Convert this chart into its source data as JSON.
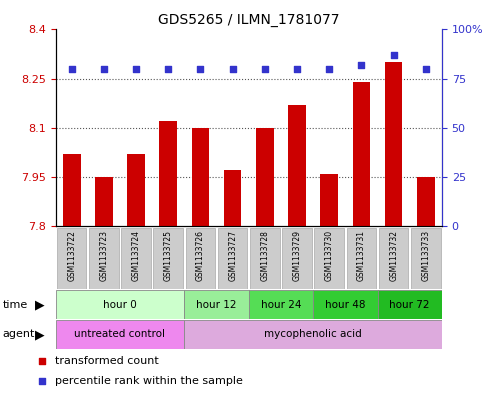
{
  "title": "GDS5265 / ILMN_1781077",
  "samples": [
    "GSM1133722",
    "GSM1133723",
    "GSM1133724",
    "GSM1133725",
    "GSM1133726",
    "GSM1133727",
    "GSM1133728",
    "GSM1133729",
    "GSM1133730",
    "GSM1133731",
    "GSM1133732",
    "GSM1133733"
  ],
  "bar_values": [
    8.02,
    7.95,
    8.02,
    8.12,
    8.1,
    7.97,
    8.1,
    8.17,
    7.96,
    8.24,
    8.3,
    7.95
  ],
  "blue_dot_values": [
    80,
    80,
    80,
    80,
    80,
    80,
    80,
    80,
    80,
    82,
    87,
    80
  ],
  "ylim_left": [
    7.8,
    8.4
  ],
  "ylim_right": [
    0,
    100
  ],
  "yticks_left": [
    7.8,
    7.95,
    8.1,
    8.25,
    8.4
  ],
  "ytick_labels_left": [
    "7.8",
    "7.95",
    "8.1",
    "8.25",
    "8.4"
  ],
  "yticks_right": [
    0,
    25,
    50,
    75,
    100
  ],
  "ytick_labels_right": [
    "0",
    "25",
    "50",
    "75",
    "100%"
  ],
  "bar_color": "#cc0000",
  "dot_color": "#3333cc",
  "time_groups": [
    {
      "label": "hour 0",
      "start": 0,
      "end": 4,
      "color": "#ccffcc"
    },
    {
      "label": "hour 12",
      "start": 4,
      "end": 6,
      "color": "#99ee99"
    },
    {
      "label": "hour 24",
      "start": 6,
      "end": 8,
      "color": "#55dd55"
    },
    {
      "label": "hour 48",
      "start": 8,
      "end": 10,
      "color": "#33cc33"
    },
    {
      "label": "hour 72",
      "start": 10,
      "end": 12,
      "color": "#22bb22"
    }
  ],
  "agent_groups": [
    {
      "label": "untreated control",
      "start": 0,
      "end": 4,
      "color": "#ee88ee"
    },
    {
      "label": "mycophenolic acid",
      "start": 4,
      "end": 12,
      "color": "#ddaadd"
    }
  ],
  "legend_items": [
    {
      "label": "transformed count",
      "color": "#cc0000"
    },
    {
      "label": "percentile rank within the sample",
      "color": "#3333cc"
    }
  ],
  "dotted_lines": [
    7.95,
    8.1,
    8.25
  ],
  "sample_box_color": "#cccccc",
  "sample_box_edge": "#aaaaaa"
}
